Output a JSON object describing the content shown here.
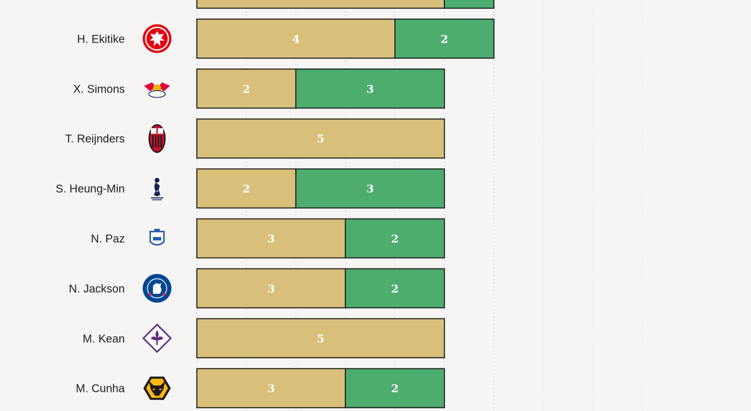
{
  "chart_data": {
    "type": "bar",
    "orientation": "horizontal",
    "stacked": true,
    "grid": true,
    "xlim": [
      0,
      10
    ],
    "categories": [
      "",
      "H. Ekitike",
      "X. Simons",
      "T. Reijnders",
      "S. Heung-Min",
      "N. Paz",
      "N. Jackson",
      "M. Kean",
      "M. Cunha"
    ],
    "crests": [
      "club-crest-icon",
      "eintracht-frankfurt-crest-icon",
      "rb-leipzig-crest-icon",
      "ac-milan-crest-icon",
      "tottenham-crest-icon",
      "como-crest-icon",
      "chelsea-crest-icon",
      "fiorentina-crest-icon",
      "wolves-crest-icon"
    ],
    "series": [
      {
        "values": [
          5,
          4,
          2,
          5,
          2,
          3,
          3,
          5,
          3
        ],
        "color": "#d8c07a"
      },
      {
        "values": [
          1,
          2,
          3,
          0,
          3,
          2,
          2,
          0,
          2
        ],
        "color": "#4dad6f"
      }
    ],
    "value_labels": [
      [
        "",
        "4",
        "2",
        "5",
        "2",
        "3",
        "3",
        "5",
        "3"
      ],
      [
        "",
        "2",
        "3",
        "",
        "3",
        "2",
        "2",
        "",
        "2"
      ]
    ]
  }
}
